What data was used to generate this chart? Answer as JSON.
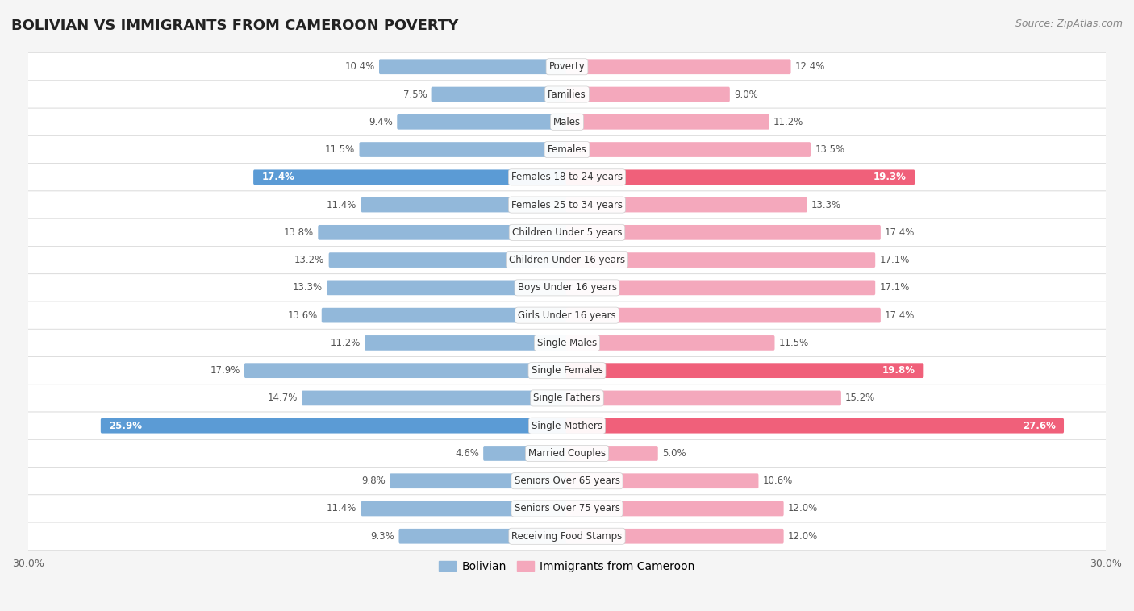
{
  "title": "BOLIVIAN VS IMMIGRANTS FROM CAMEROON POVERTY",
  "source": "Source: ZipAtlas.com",
  "categories": [
    "Poverty",
    "Families",
    "Males",
    "Females",
    "Females 18 to 24 years",
    "Females 25 to 34 years",
    "Children Under 5 years",
    "Children Under 16 years",
    "Boys Under 16 years",
    "Girls Under 16 years",
    "Single Males",
    "Single Females",
    "Single Fathers",
    "Single Mothers",
    "Married Couples",
    "Seniors Over 65 years",
    "Seniors Over 75 years",
    "Receiving Food Stamps"
  ],
  "bolivian": [
    10.4,
    7.5,
    9.4,
    11.5,
    17.4,
    11.4,
    13.8,
    13.2,
    13.3,
    13.6,
    11.2,
    17.9,
    14.7,
    25.9,
    4.6,
    9.8,
    11.4,
    9.3
  ],
  "cameroon": [
    12.4,
    9.0,
    11.2,
    13.5,
    19.3,
    13.3,
    17.4,
    17.1,
    17.1,
    17.4,
    11.5,
    19.8,
    15.2,
    27.6,
    5.0,
    10.6,
    12.0,
    12.0
  ],
  "bolivian_color": "#92b8da",
  "cameroon_color": "#f4a8bc",
  "bolivian_highlight_color": "#5b9bd5",
  "cameroon_highlight_color": "#f0607a",
  "highlight_bolivian_indices": [
    4,
    13
  ],
  "highlight_cameroon_indices": [
    4,
    11,
    13
  ],
  "row_color_even": "#f2f2f2",
  "row_color_odd": "#fafafa",
  "separator_color": "#d8d8d8",
  "bg_color": "#f5f5f5",
  "xlim": 30.0,
  "bar_height": 0.42,
  "label_fontsize": 8.5,
  "title_fontsize": 13,
  "source_fontsize": 9,
  "legend_fontsize": 10
}
